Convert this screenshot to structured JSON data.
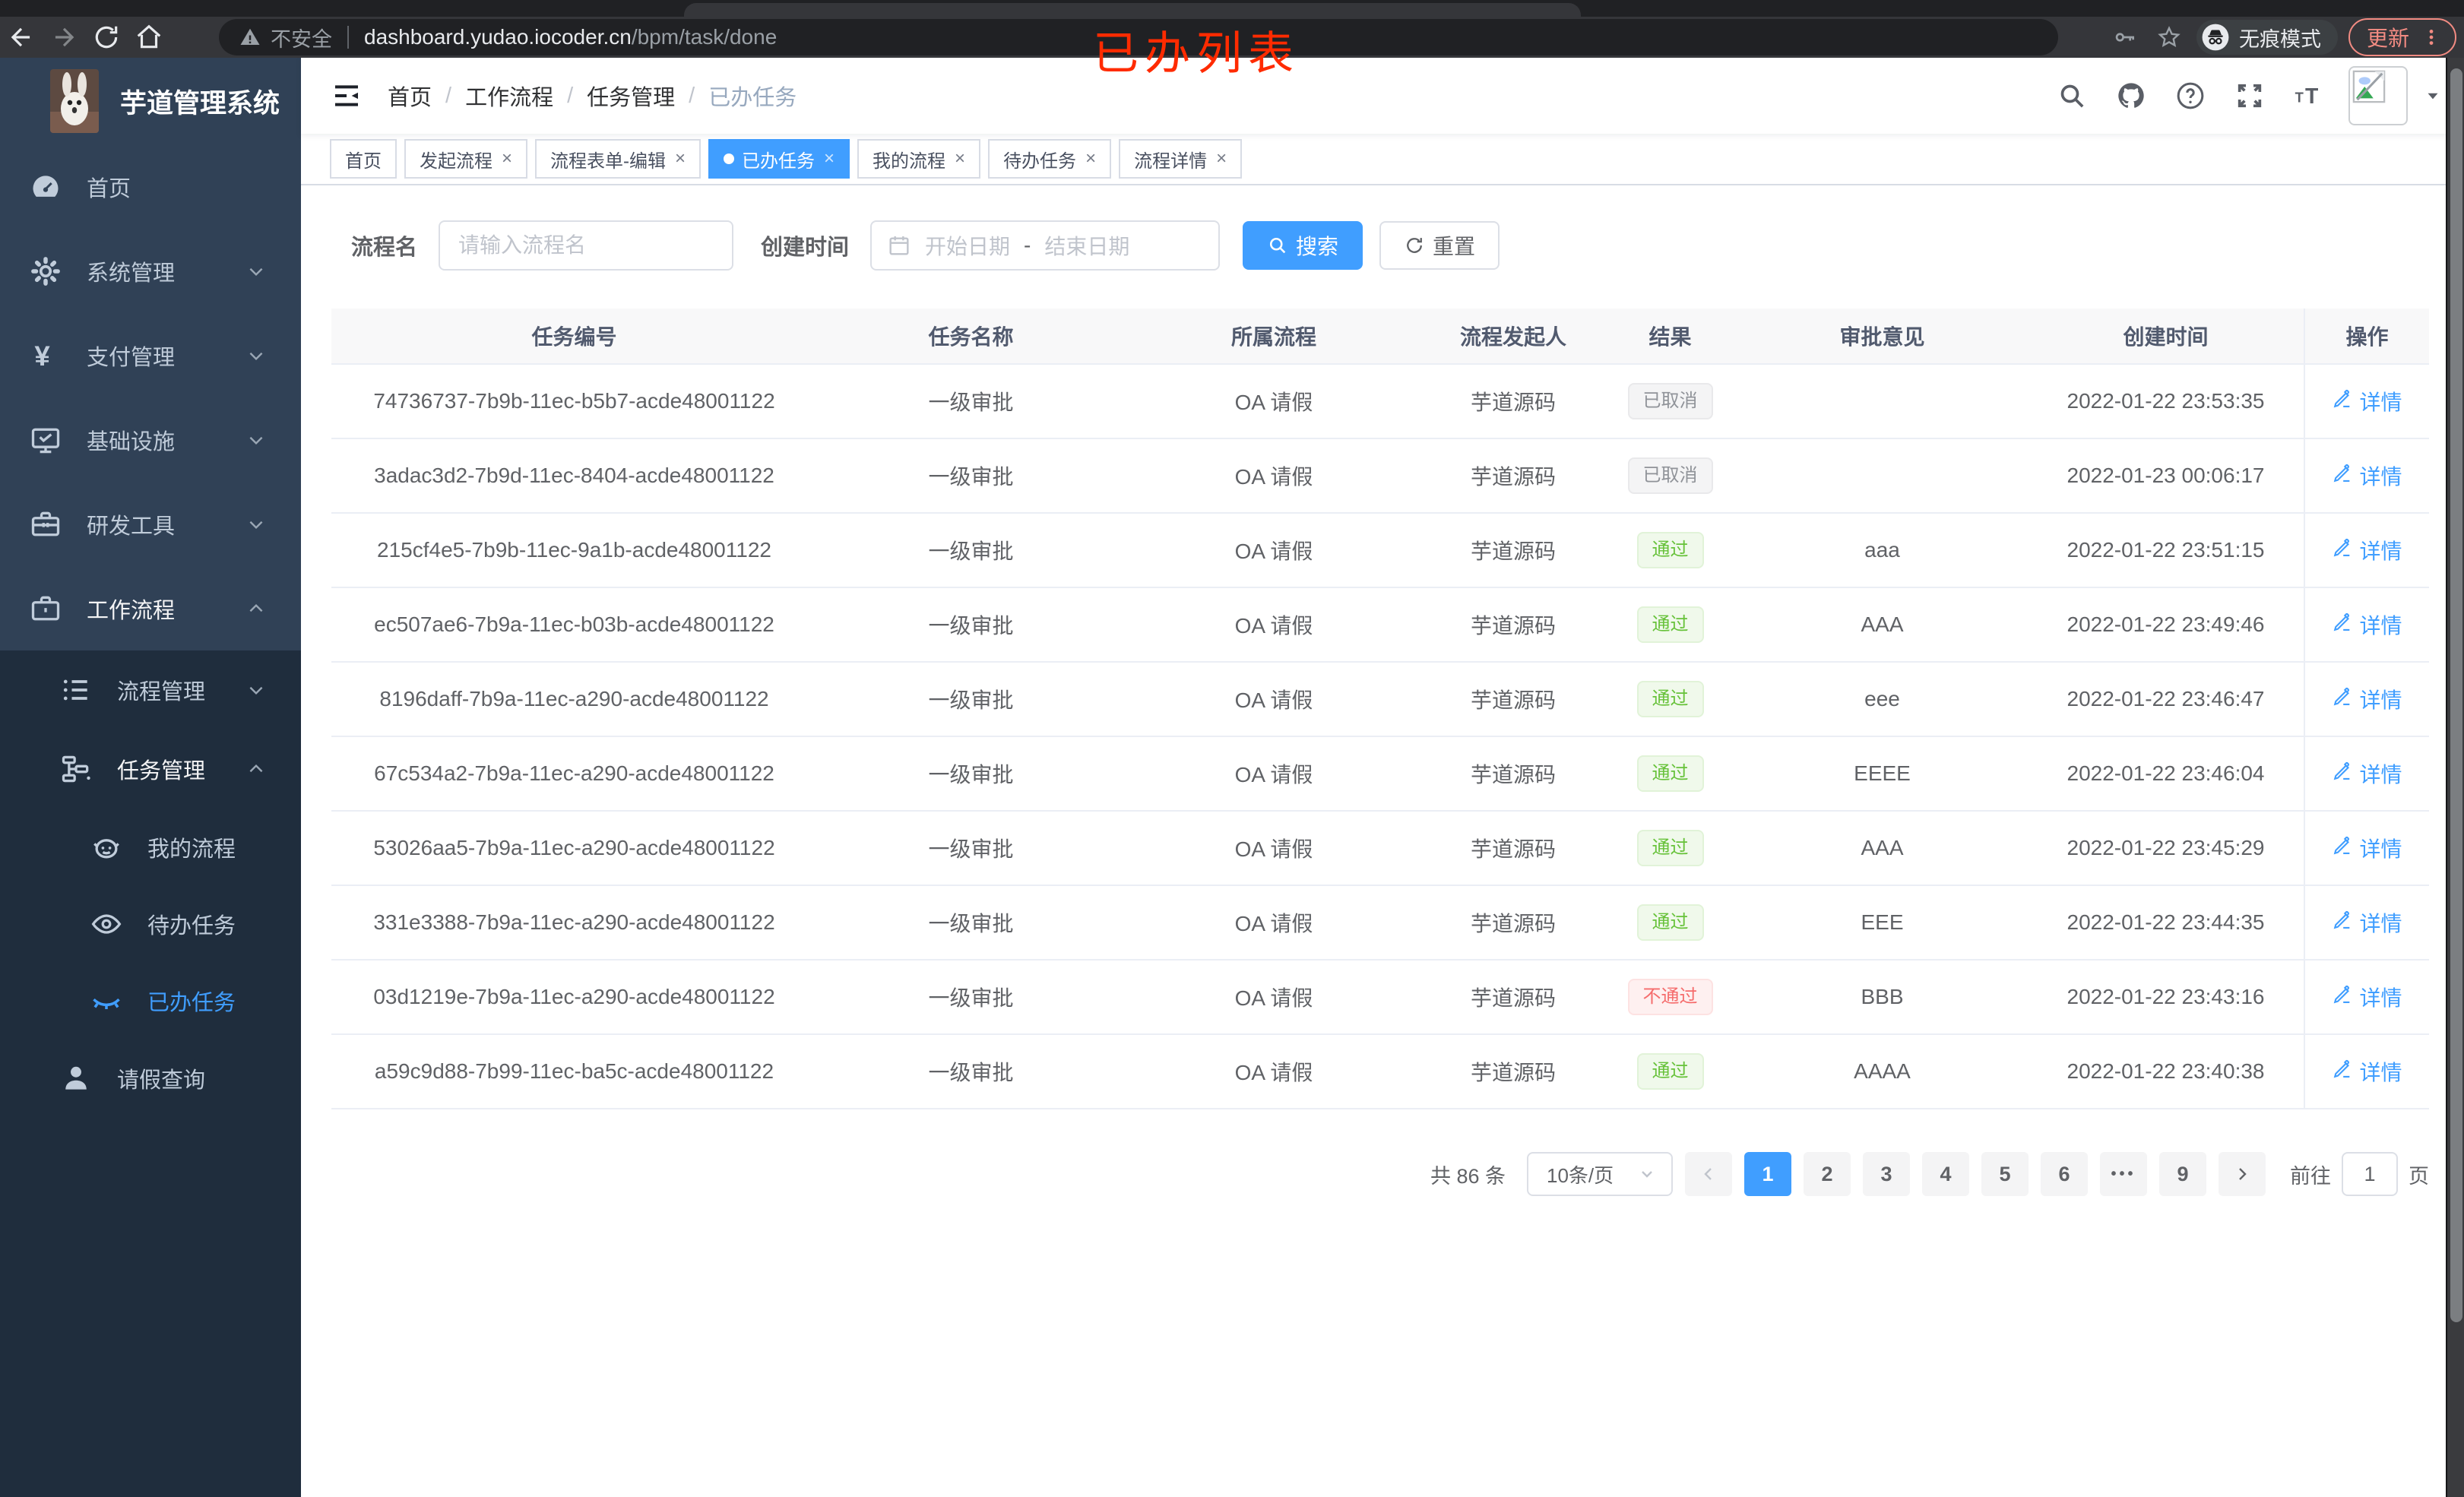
{
  "browser": {
    "security_label": "不安全",
    "url_domain": "dashboard.yudao.iocoder.cn",
    "url_path": "/bpm/task/done",
    "incognito_label": "无痕模式",
    "update_label": "更新"
  },
  "annotation": {
    "text": "已办列表",
    "color": "#ff2b00"
  },
  "sidebar": {
    "title": "芋道管理系统",
    "top_items": [
      {
        "label": "首页",
        "icon": "dashboard-icon",
        "arrow": ""
      },
      {
        "label": "系统管理",
        "icon": "gear-icon",
        "arrow": "down"
      },
      {
        "label": "支付管理",
        "icon": "yen-icon",
        "arrow": "down"
      },
      {
        "label": "基础设施",
        "icon": "monitor-icon",
        "arrow": "down"
      },
      {
        "label": "研发工具",
        "icon": "toolbox-icon",
        "arrow": "down"
      },
      {
        "label": "工作流程",
        "icon": "briefcase-icon",
        "arrow": "up",
        "open": true
      }
    ],
    "sub_items": [
      {
        "label": "流程管理",
        "icon": "list-icon",
        "arrow": "down",
        "level": 2
      },
      {
        "label": "任务管理",
        "icon": "tree-icon",
        "arrow": "up",
        "level": 2,
        "open": true
      },
      {
        "label": "我的流程",
        "icon": "robot-icon",
        "level": 3
      },
      {
        "label": "待办任务",
        "icon": "eye-icon",
        "level": 3
      },
      {
        "label": "已办任务",
        "icon": "eye-closed-icon",
        "level": 3,
        "active": true
      },
      {
        "label": "请假查询",
        "icon": "user-icon",
        "level": 2
      }
    ]
  },
  "header": {
    "breadcrumb": [
      "首页",
      "工作流程",
      "任务管理",
      "已办任务"
    ]
  },
  "tabs": [
    {
      "label": "首页",
      "closable": false,
      "active": false
    },
    {
      "label": "发起流程",
      "closable": true,
      "active": false
    },
    {
      "label": "流程表单-编辑",
      "closable": true,
      "active": false
    },
    {
      "label": "已办任务",
      "closable": true,
      "active": true
    },
    {
      "label": "我的流程",
      "closable": true,
      "active": false
    },
    {
      "label": "待办任务",
      "closable": true,
      "active": false
    },
    {
      "label": "流程详情",
      "closable": true,
      "active": false
    }
  ],
  "filters": {
    "name_label": "流程名",
    "name_placeholder": "请输入流程名",
    "time_label": "创建时间",
    "start_placeholder": "开始日期",
    "range_separator": "-",
    "end_placeholder": "结束日期",
    "search_label": "搜索",
    "reset_label": "重置"
  },
  "table": {
    "columns": [
      "任务编号",
      "任务名称",
      "所属流程",
      "流程发起人",
      "结果",
      "审批意见",
      "创建时间",
      "操作"
    ],
    "detail_label": "详情",
    "rows": [
      {
        "id": "74736737-7b9b-11ec-b5b7-acde48001122",
        "name": "一级审批",
        "process": "OA 请假",
        "starter": "芋道源码",
        "result": "已取消",
        "result_type": "info",
        "comment": "",
        "created": "2022-01-22 23:53:35"
      },
      {
        "id": "3adac3d2-7b9d-11ec-8404-acde48001122",
        "name": "一级审批",
        "process": "OA 请假",
        "starter": "芋道源码",
        "result": "已取消",
        "result_type": "info",
        "comment": "",
        "created": "2022-01-23 00:06:17"
      },
      {
        "id": "215cf4e5-7b9b-11ec-9a1b-acde48001122",
        "name": "一级审批",
        "process": "OA 请假",
        "starter": "芋道源码",
        "result": "通过",
        "result_type": "success",
        "comment": "aaa",
        "created": "2022-01-22 23:51:15"
      },
      {
        "id": "ec507ae6-7b9a-11ec-b03b-acde48001122",
        "name": "一级审批",
        "process": "OA 请假",
        "starter": "芋道源码",
        "result": "通过",
        "result_type": "success",
        "comment": "AAA",
        "created": "2022-01-22 23:49:46"
      },
      {
        "id": "8196daff-7b9a-11ec-a290-acde48001122",
        "name": "一级审批",
        "process": "OA 请假",
        "starter": "芋道源码",
        "result": "通过",
        "result_type": "success",
        "comment": "eee",
        "created": "2022-01-22 23:46:47"
      },
      {
        "id": "67c534a2-7b9a-11ec-a290-acde48001122",
        "name": "一级审批",
        "process": "OA 请假",
        "starter": "芋道源码",
        "result": "通过",
        "result_type": "success",
        "comment": "EEEE",
        "created": "2022-01-22 23:46:04"
      },
      {
        "id": "53026aa5-7b9a-11ec-a290-acde48001122",
        "name": "一级审批",
        "process": "OA 请假",
        "starter": "芋道源码",
        "result": "通过",
        "result_type": "success",
        "comment": "AAA",
        "created": "2022-01-22 23:45:29"
      },
      {
        "id": "331e3388-7b9a-11ec-a290-acde48001122",
        "name": "一级审批",
        "process": "OA 请假",
        "starter": "芋道源码",
        "result": "通过",
        "result_type": "success",
        "comment": "EEE",
        "created": "2022-01-22 23:44:35"
      },
      {
        "id": "03d1219e-7b9a-11ec-a290-acde48001122",
        "name": "一级审批",
        "process": "OA 请假",
        "starter": "芋道源码",
        "result": "不通过",
        "result_type": "danger",
        "comment": "BBB",
        "created": "2022-01-22 23:43:16"
      },
      {
        "id": "a59c9d88-7b99-11ec-ba5c-acde48001122",
        "name": "一级审批",
        "process": "OA 请假",
        "starter": "芋道源码",
        "result": "通过",
        "result_type": "success",
        "comment": "AAAA",
        "created": "2022-01-22 23:40:38"
      }
    ]
  },
  "pagination": {
    "total_label": "共 86 条",
    "page_size_label": "10条/页",
    "pages": [
      "1",
      "2",
      "3",
      "4",
      "5",
      "6",
      "•••",
      "9"
    ],
    "active_page": "1",
    "goto_label": "前往",
    "goto_value": "1",
    "page_unit": "页"
  },
  "colors": {
    "accent": "#409eff",
    "success": "#67c23a",
    "danger": "#f56c6c",
    "info": "#909399",
    "sidebar_bg": "#304156",
    "submenu_bg": "#1f2d3d",
    "annotation_red": "#ff2b00"
  }
}
